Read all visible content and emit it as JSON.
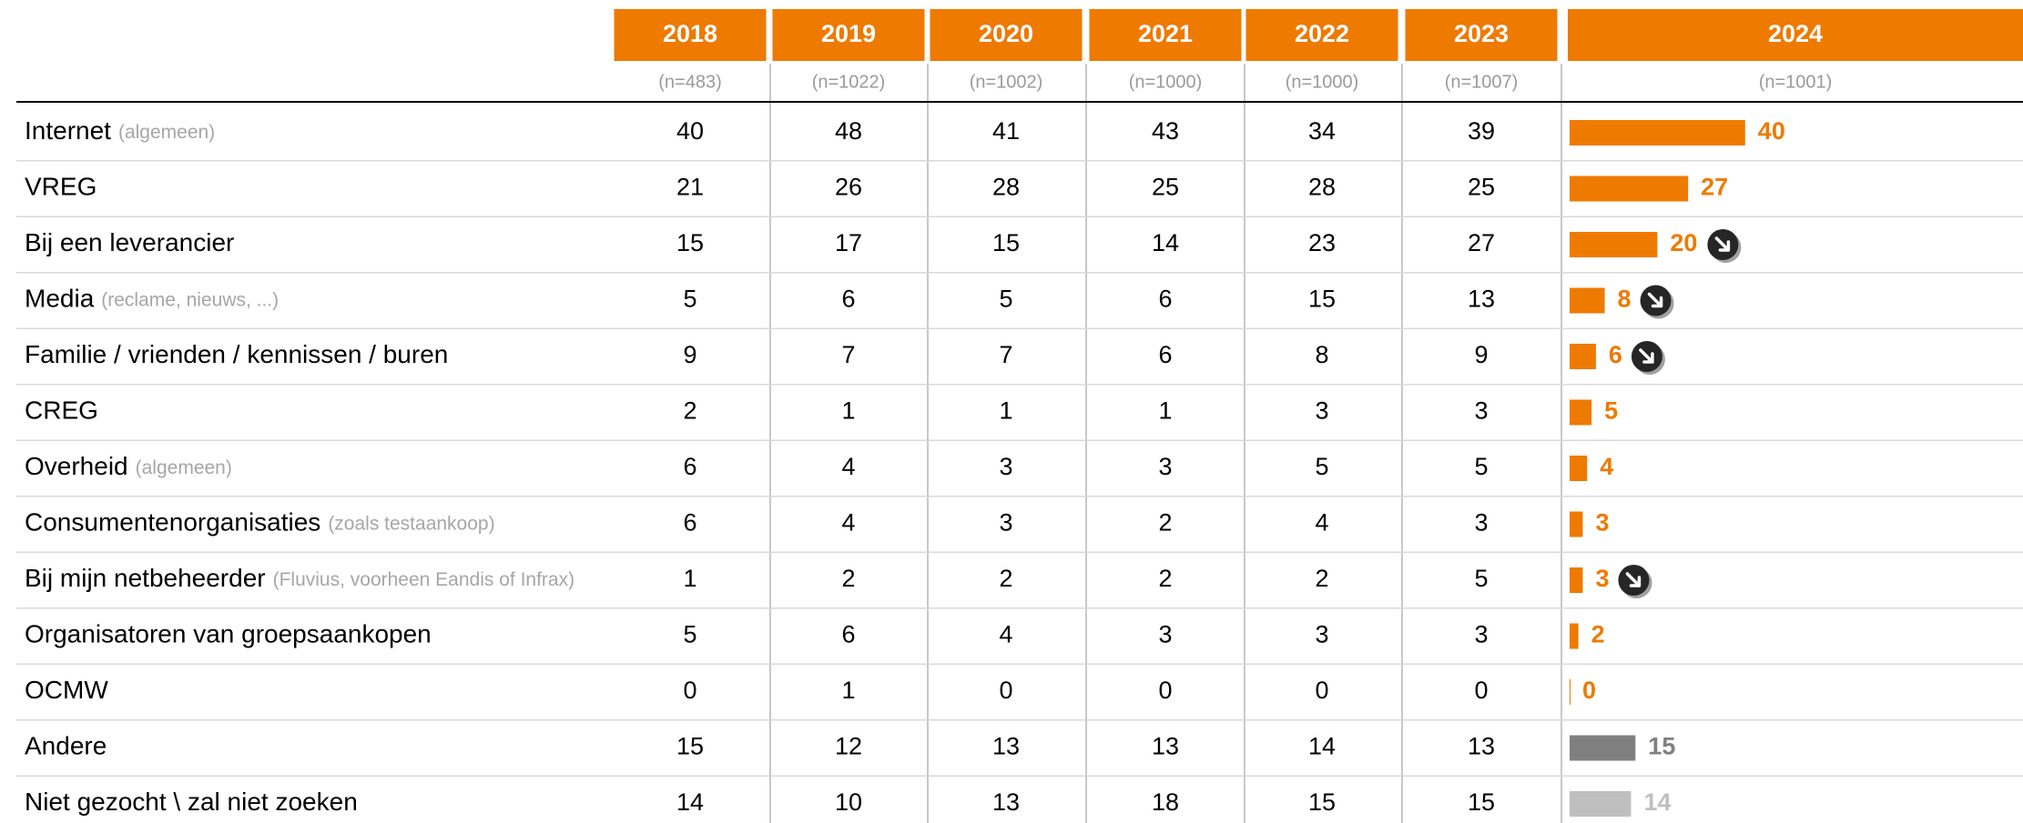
{
  "columns": [
    "2018",
    "2019",
    "2020",
    "2021",
    "2022",
    "2023",
    "2024"
  ],
  "n": [
    "(n=483)",
    "(n=1022)",
    "(n=1002)",
    "(n=1000)",
    "(n=1000)",
    "(n=1007)",
    "(n=1001)"
  ],
  "rows": [
    {
      "label": "Internet",
      "note": "(algemeen)",
      "values": [
        40,
        48,
        41,
        43,
        34,
        39,
        40
      ],
      "color": "#ee7a00"
    },
    {
      "label": "VREG",
      "values": [
        21,
        26,
        28,
        25,
        28,
        25,
        27
      ],
      "color": "#ee7a00"
    },
    {
      "label": "Bij een leverancier",
      "values": [
        15,
        17,
        15,
        14,
        23,
        27,
        20
      ],
      "color": "#ee7a00",
      "down": true
    },
    {
      "label": "Media",
      "note": "(reclame, nieuws, ...)",
      "values": [
        5,
        6,
        5,
        6,
        15,
        13,
        8
      ],
      "color": "#ee7a00",
      "down": true
    },
    {
      "label": "Familie / vrienden / kennissen / buren",
      "values": [
        9,
        7,
        7,
        6,
        8,
        9,
        6
      ],
      "color": "#ee7a00",
      "down": true
    },
    {
      "label": "CREG",
      "values": [
        2,
        1,
        1,
        1,
        3,
        3,
        5
      ],
      "color": "#ee7a00"
    },
    {
      "label": "Overheid",
      "note": "(algemeen)",
      "values": [
        6,
        4,
        3,
        3,
        5,
        5,
        4
      ],
      "color": "#ee7a00"
    },
    {
      "label": "Consumentenorganisaties",
      "note": "(zoals testaankoop)",
      "values": [
        6,
        4,
        3,
        2,
        4,
        3,
        3
      ],
      "color": "#ee7a00"
    },
    {
      "label": "Bij mijn netbeheerder",
      "note": "(Fluvius, voorheen Eandis of Infrax)",
      "values": [
        1,
        2,
        2,
        2,
        2,
        5,
        3
      ],
      "color": "#ee7a00",
      "down": true
    },
    {
      "label": "Organisatoren van groepsaankopen",
      "values": [
        5,
        6,
        4,
        3,
        3,
        3,
        2
      ],
      "color": "#ee7a00"
    },
    {
      "label": "OCMW",
      "values": [
        0,
        1,
        0,
        0,
        0,
        0,
        0
      ],
      "color": "#ee7a00"
    },
    {
      "label": "Andere",
      "values": [
        15,
        12,
        13,
        13,
        14,
        13,
        15
      ],
      "color": "#808080"
    },
    {
      "label": "Niet gezocht \\ zal niet zoeken",
      "values": [
        14,
        10,
        13,
        18,
        15,
        15,
        14
      ],
      "color": "#bfbfbf"
    }
  ]
}
